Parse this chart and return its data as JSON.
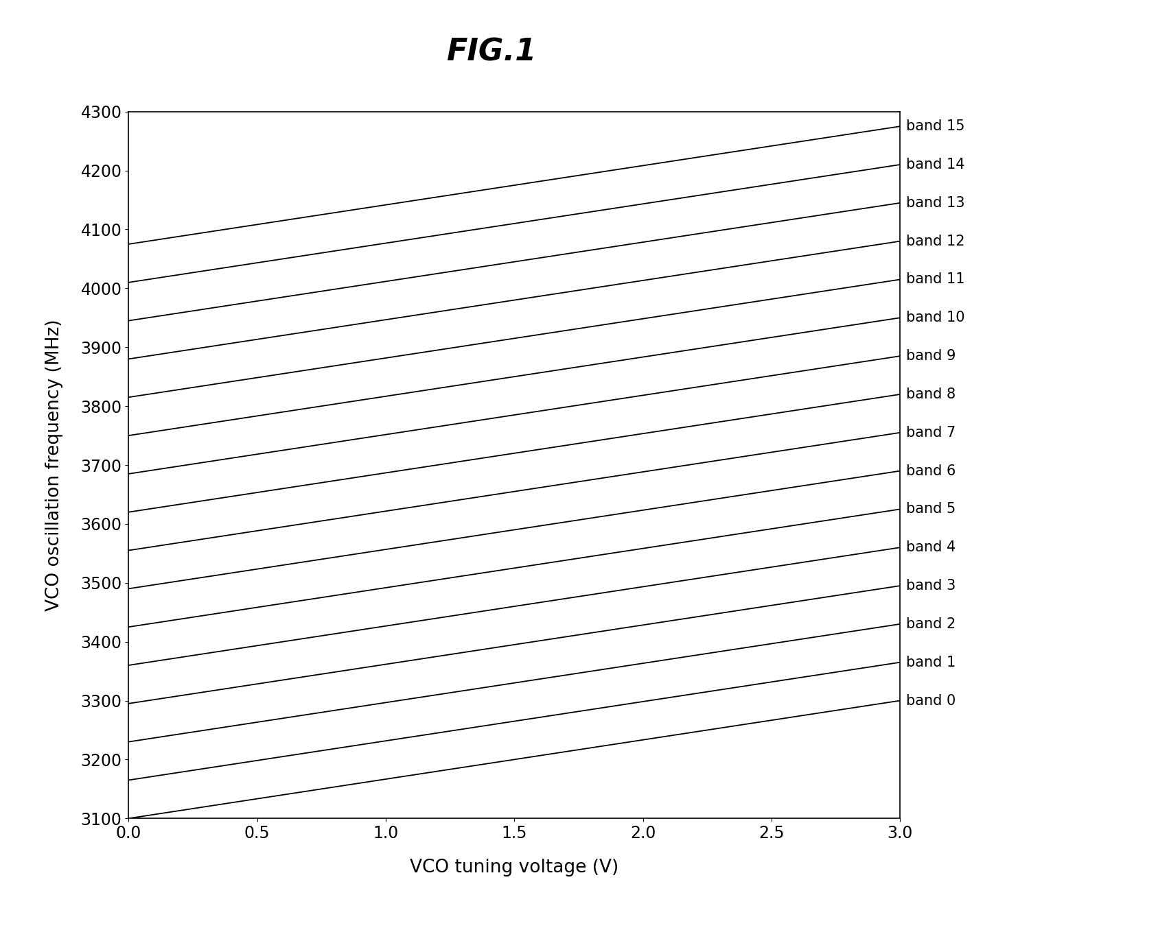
{
  "title": "FIG.1",
  "xlabel": "VCO tuning voltage (V)",
  "ylabel": "VCO oscillation frequency (MHz)",
  "xlim": [
    0,
    3
  ],
  "ylim": [
    3100,
    4300
  ],
  "xticks": [
    0,
    0.5,
    1,
    1.5,
    2,
    2.5,
    3
  ],
  "yticks": [
    3100,
    3200,
    3300,
    3400,
    3500,
    3600,
    3700,
    3800,
    3900,
    4000,
    4100,
    4200,
    4300
  ],
  "num_bands": 16,
  "x_start": 0,
  "x_end": 3,
  "band_start_freqs": [
    3100,
    3165,
    3230,
    3295,
    3360,
    3425,
    3490,
    3555,
    3620,
    3685,
    3750,
    3815,
    3880,
    3945,
    4010,
    4075
  ],
  "slope": 200,
  "line_color": "#000000",
  "line_width": 1.3,
  "background_color": "#ffffff",
  "title_fontsize": 32,
  "label_fontsize": 19,
  "tick_fontsize": 17,
  "band_label_fontsize": 15
}
